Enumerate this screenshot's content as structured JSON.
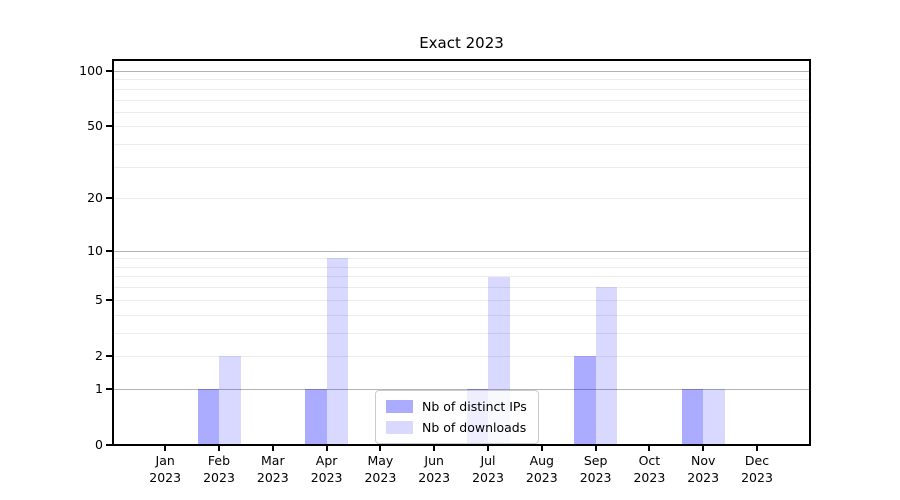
{
  "chart_data": {
    "type": "bar",
    "title": "Exact 2023",
    "categories": [
      "Jan",
      "Feb",
      "Mar",
      "Apr",
      "May",
      "Jun",
      "Jul",
      "Aug",
      "Sep",
      "Oct",
      "Nov",
      "Dec"
    ],
    "year_label": "2023",
    "series": [
      {
        "name": "Nb of distinct IPs",
        "color": "#0000FF54",
        "values": [
          0,
          1,
          0,
          1,
          0,
          0,
          1,
          0,
          2,
          0,
          1,
          0
        ]
      },
      {
        "name": "Nb of downloads",
        "color": "#0000FF26",
        "values": [
          0,
          2,
          0,
          9,
          0,
          0,
          7,
          0,
          6,
          0,
          1,
          0
        ]
      }
    ],
    "yscale": "log1p",
    "ylim": [
      0,
      114
    ],
    "yticks": [
      0,
      1,
      2,
      5,
      10,
      20,
      50,
      100
    ],
    "major_gridlines": [
      1,
      10,
      100
    ],
    "minor_gridlines": [
      2,
      3,
      4,
      5,
      6,
      7,
      8,
      9,
      20,
      30,
      40,
      50,
      60,
      70,
      80,
      90
    ],
    "grid": true,
    "legend_position": "lower center",
    "colors": {
      "axis": "#000000",
      "grid_major": "#b4b4b4",
      "grid_minor": "#ececec",
      "text": "#000000"
    }
  }
}
